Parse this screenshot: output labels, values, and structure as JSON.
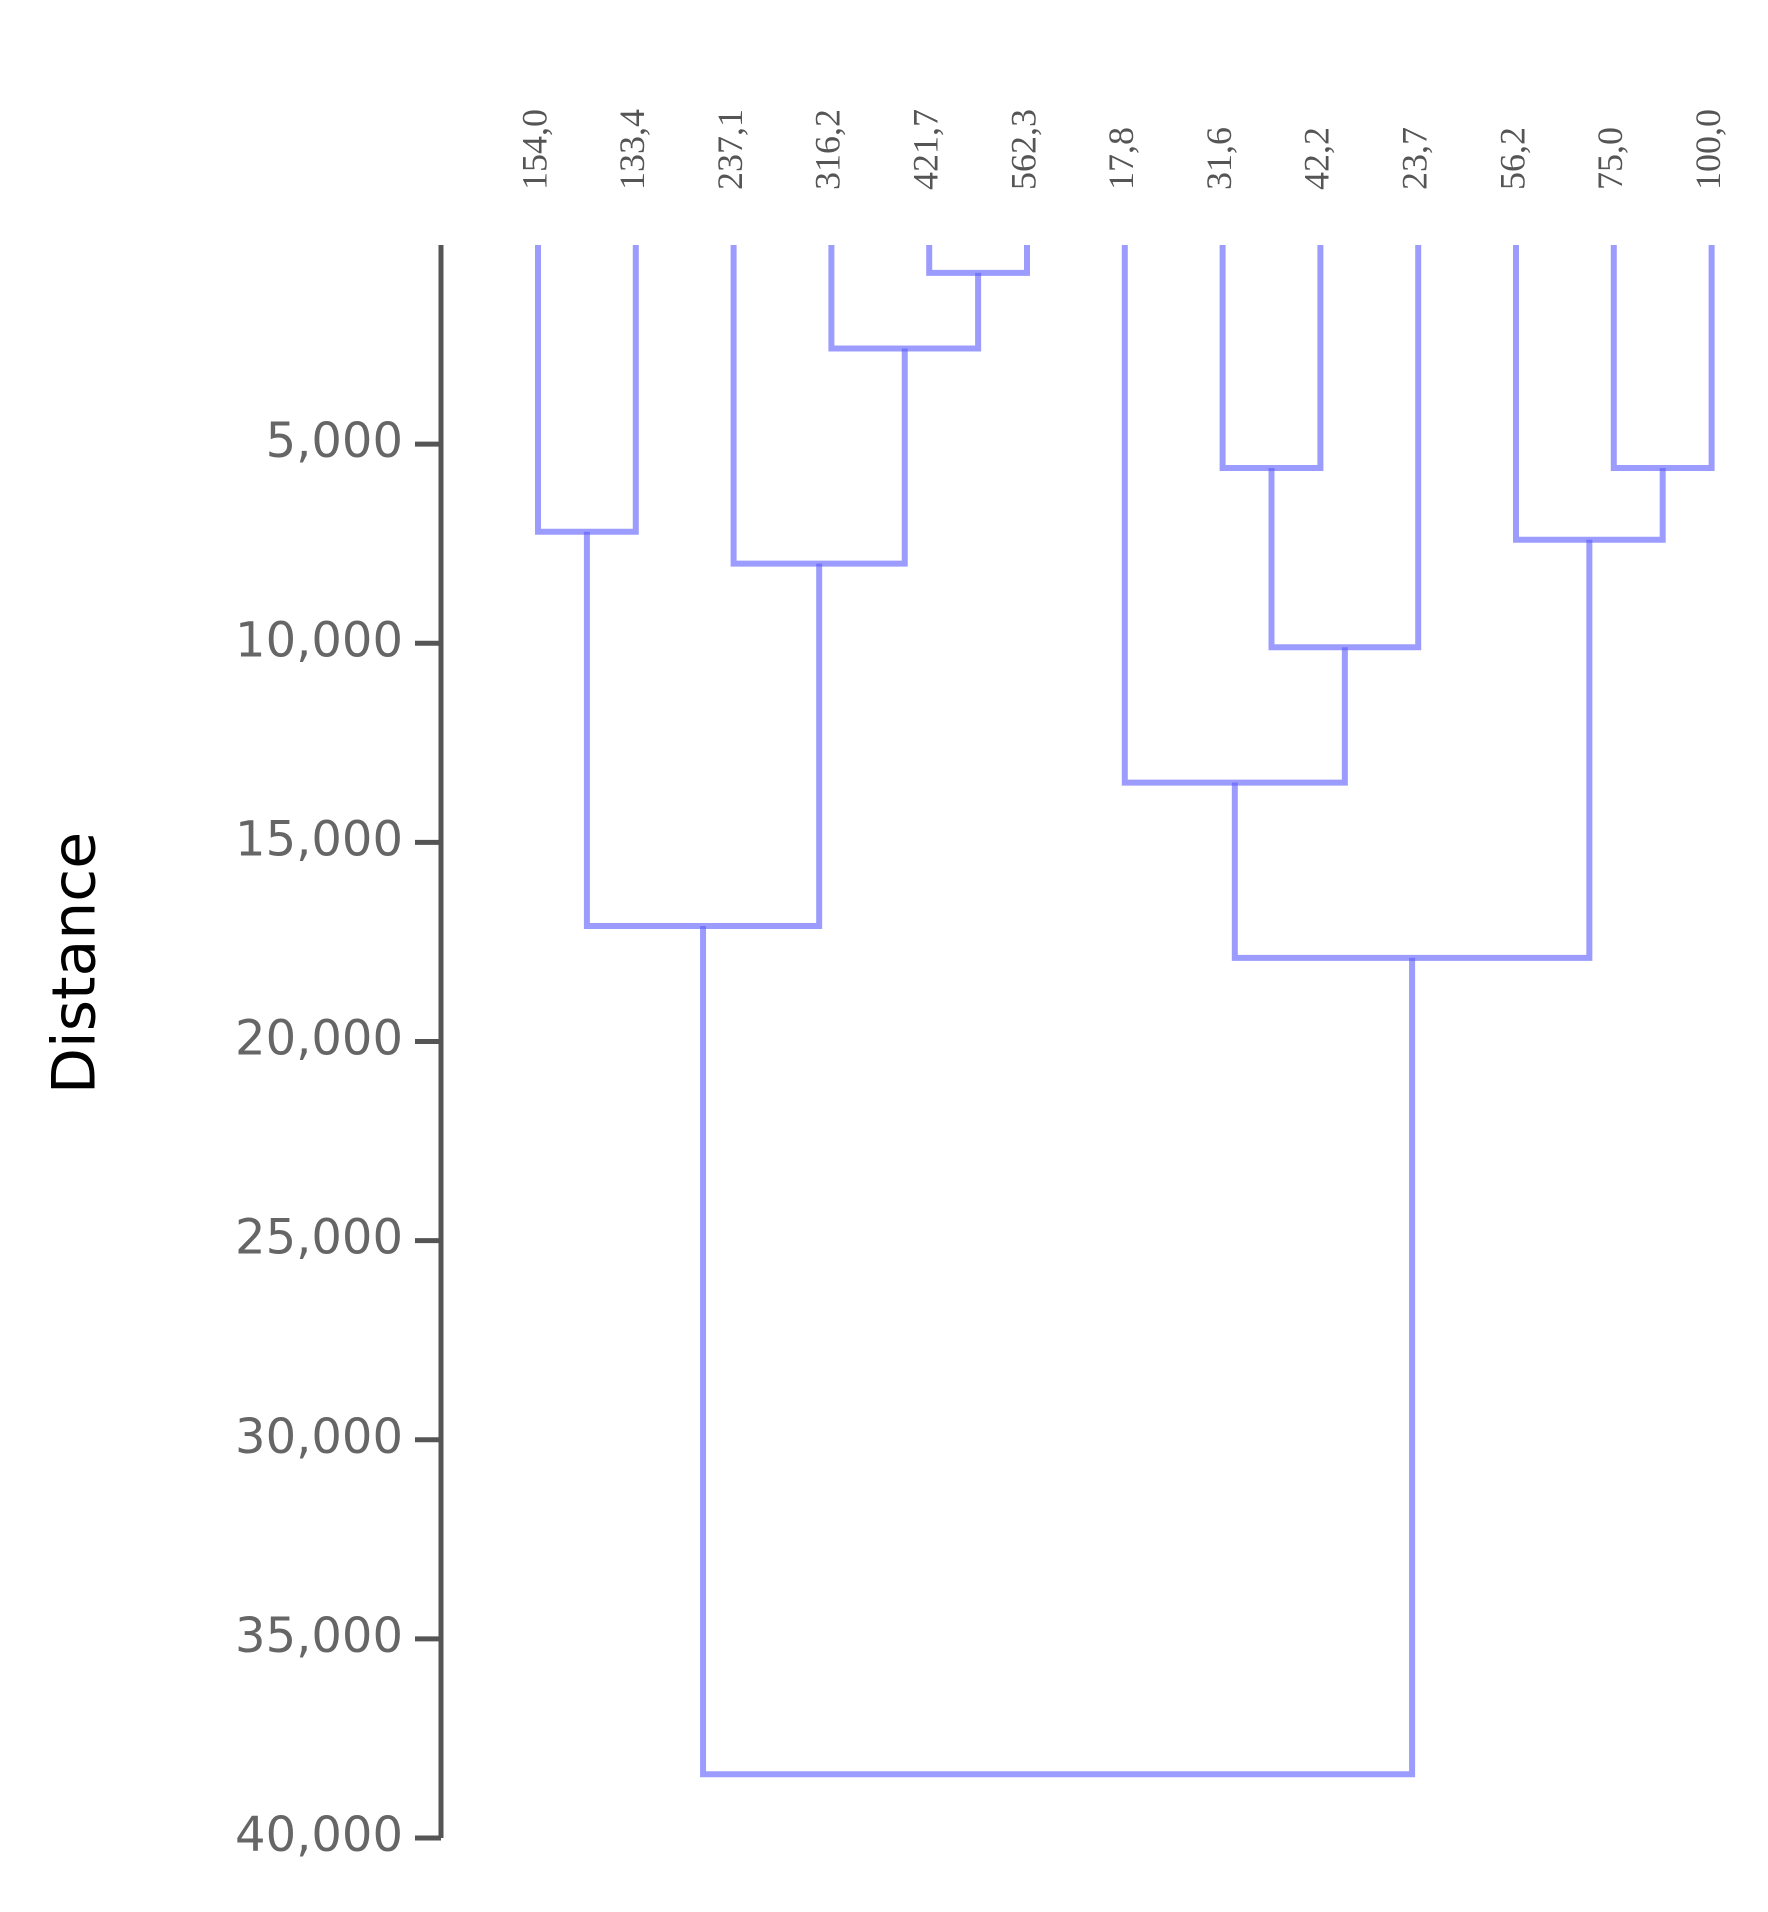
{
  "chart_data": {
    "type": "dendrogram",
    "y_label": "Distance",
    "leaves": [
      "154,0",
      "133,4",
      "237,1",
      "316,2",
      "421,7",
      "562,3",
      "17,8",
      "31,6",
      "42,2",
      "23,7",
      "56,2",
      "75,0",
      "100,0"
    ],
    "merges": [
      [
        4,
        5,
        700
      ],
      [
        3,
        13,
        2600
      ],
      [
        7,
        8,
        5600
      ],
      [
        11,
        12,
        5600
      ],
      [
        0,
        1,
        7200
      ],
      [
        10,
        16,
        7400
      ],
      [
        2,
        14,
        8000
      ],
      [
        15,
        9,
        10100
      ],
      [
        6,
        20,
        13500
      ],
      [
        17,
        19,
        17100
      ],
      [
        21,
        18,
        17900
      ],
      [
        22,
        23,
        38400
      ]
    ],
    "color": "#5a5aff",
    "ylim": [
      0,
      40000
    ],
    "yticks": [
      {
        "value": 5000,
        "label": "5,000"
      },
      {
        "value": 10000,
        "label": "10,000"
      },
      {
        "value": 15000,
        "label": "15,000"
      },
      {
        "value": 20000,
        "label": "20,000"
      },
      {
        "value": 25000,
        "label": "25,000"
      },
      {
        "value": 30000,
        "label": "30,000"
      },
      {
        "value": 35000,
        "label": "35,000"
      },
      {
        "value": 40000,
        "label": "40,000"
      }
    ]
  }
}
